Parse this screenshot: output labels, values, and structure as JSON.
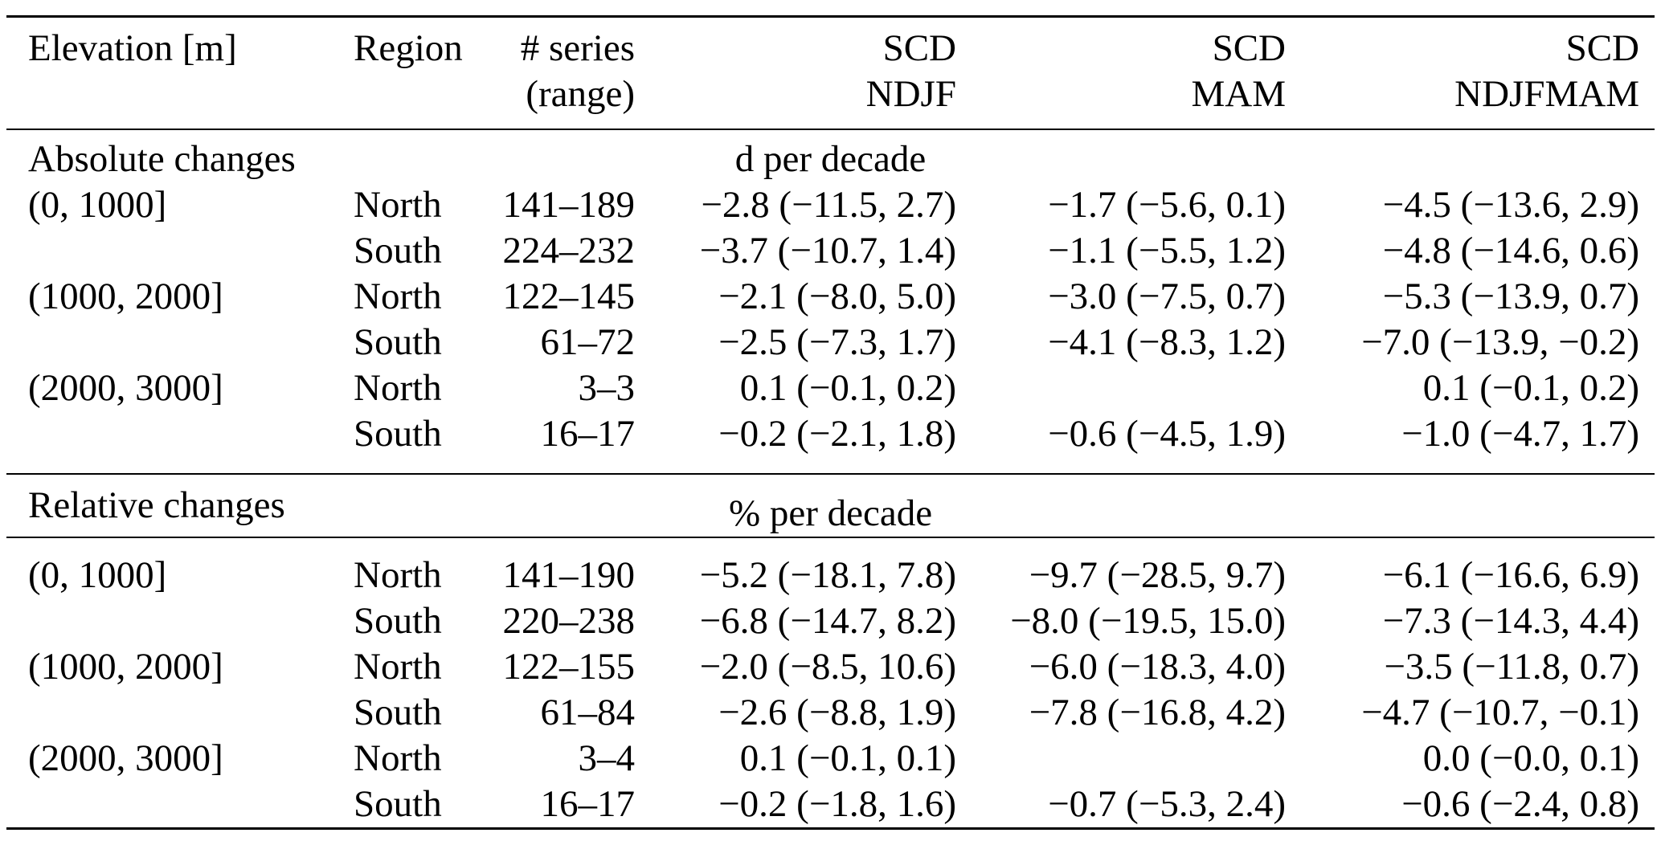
{
  "colors": {
    "text": "#000000",
    "background": "#ffffff",
    "rule": "#000000"
  },
  "table": {
    "header": {
      "columns": [
        {
          "l1": "Elevation [m]",
          "l2": ""
        },
        {
          "l1": "Region",
          "l2": ""
        },
        {
          "l1": "# series",
          "l2": "(range)"
        },
        {
          "l1": "SCD",
          "l2": "NDJF"
        },
        {
          "l1": "SCD",
          "l2": "MAM"
        },
        {
          "l1": "SCD",
          "l2": "NDJFMAM"
        }
      ]
    },
    "sections": [
      {
        "label": "Absolute changes",
        "unit": "d per decade",
        "rows": [
          {
            "elevation": "(0, 1000]",
            "region": "North",
            "series": "141–189",
            "ndjf": "−2.8 (−11.5, 2.7)",
            "mam": "−1.7 (−5.6, 0.1)",
            "ndjfmam": "−4.5 (−13.6, 2.9)"
          },
          {
            "elevation": "",
            "region": "South",
            "series": "224–232",
            "ndjf": "−3.7 (−10.7, 1.4)",
            "mam": "−1.1 (−5.5, 1.2)",
            "ndjfmam": "−4.8 (−14.6, 0.6)"
          },
          {
            "elevation": "(1000, 2000]",
            "region": "North",
            "series": "122–145",
            "ndjf": "−2.1 (−8.0, 5.0)",
            "mam": "−3.0 (−7.5, 0.7)",
            "ndjfmam": "−5.3 (−13.9, 0.7)"
          },
          {
            "elevation": "",
            "region": "South",
            "series": "61–72",
            "ndjf": "−2.5 (−7.3, 1.7)",
            "mam": "−4.1 (−8.3, 1.2)",
            "ndjfmam": "−7.0 (−13.9, −0.2)"
          },
          {
            "elevation": "(2000, 3000]",
            "region": "North",
            "series": "3–3",
            "ndjf": "0.1 (−0.1, 0.2)",
            "mam": "",
            "ndjfmam": "0.1 (−0.1, 0.2)"
          },
          {
            "elevation": "",
            "region": "South",
            "series": "16–17",
            "ndjf": "−0.2 (−2.1, 1.8)",
            "mam": "−0.6 (−4.5, 1.9)",
            "ndjfmam": "−1.0 (−4.7, 1.7)"
          }
        ]
      },
      {
        "label": "Relative changes",
        "unit": "% per decade",
        "rows": [
          {
            "elevation": "(0, 1000]",
            "region": "North",
            "series": "141–190",
            "ndjf": "−5.2 (−18.1, 7.8)",
            "mam": "−9.7 (−28.5, 9.7)",
            "ndjfmam": "−6.1 (−16.6, 6.9)"
          },
          {
            "elevation": "",
            "region": "South",
            "series": "220–238",
            "ndjf": "−6.8 (−14.7, 8.2)",
            "mam": "−8.0 (−19.5, 15.0)",
            "ndjfmam": "−7.3 (−14.3, 4.4)"
          },
          {
            "elevation": "(1000, 2000]",
            "region": "North",
            "series": "122–155",
            "ndjf": "−2.0 (−8.5, 10.6)",
            "mam": "−6.0 (−18.3, 4.0)",
            "ndjfmam": "−3.5 (−11.8, 0.7)"
          },
          {
            "elevation": "",
            "region": "South",
            "series": "61–84",
            "ndjf": "−2.6 (−8.8, 1.9)",
            "mam": "−7.8 (−16.8, 4.2)",
            "ndjfmam": "−4.7 (−10.7, −0.1)"
          },
          {
            "elevation": "(2000, 3000]",
            "region": "North",
            "series": "3–4",
            "ndjf": "0.1 (−0.1, 0.1)",
            "mam": "",
            "ndjfmam": "0.0 (−0.0, 0.1)"
          },
          {
            "elevation": "",
            "region": "South",
            "series": "16–17",
            "ndjf": "−0.2 (−1.8, 1.6)",
            "mam": "−0.7 (−5.3, 2.4)",
            "ndjfmam": "−0.6 (−2.4, 0.8)"
          }
        ]
      }
    ]
  }
}
